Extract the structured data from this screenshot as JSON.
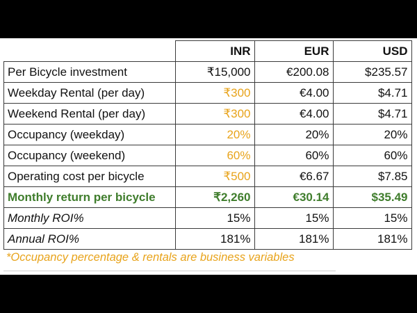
{
  "colors": {
    "variable": "#e8a31a",
    "highlight": "#3f7d2c",
    "background": "#000000",
    "sheet": "#ffffff"
  },
  "table": {
    "headers": [
      "INR",
      "EUR",
      "USD"
    ],
    "rows": [
      {
        "label": "Per Bicycle investment",
        "inr": "₹15,000",
        "eur": "€200.08",
        "usd": "$235.57"
      },
      {
        "label": "Weekday Rental (per day)",
        "inr": "₹300",
        "eur": "€4.00",
        "usd": "$4.71"
      },
      {
        "label": "Weekend Rental (per day)",
        "inr": "₹300",
        "eur": "€4.00",
        "usd": "$4.71"
      },
      {
        "label": "Occupancy (weekday)",
        "inr": "20%",
        "eur": "20%",
        "usd": "20%"
      },
      {
        "label": "Occupancy (weekend)",
        "inr": "60%",
        "eur": "60%",
        "usd": "60%"
      },
      {
        "label": "Operating cost per bicycle",
        "inr": "₹500",
        "eur": "€6.67",
        "usd": "$7.85"
      },
      {
        "label": "Monthly return per bicycle",
        "inr": "₹2,260",
        "eur": "€30.14",
        "usd": "$35.49"
      },
      {
        "label": "Monthly ROI%",
        "inr": "15%",
        "eur": "15%",
        "usd": "15%"
      },
      {
        "label": "Annual ROI%",
        "inr": "181%",
        "eur": "181%",
        "usd": "181%"
      }
    ]
  },
  "footnote": "*Occupancy percentage & rentals are business variables"
}
